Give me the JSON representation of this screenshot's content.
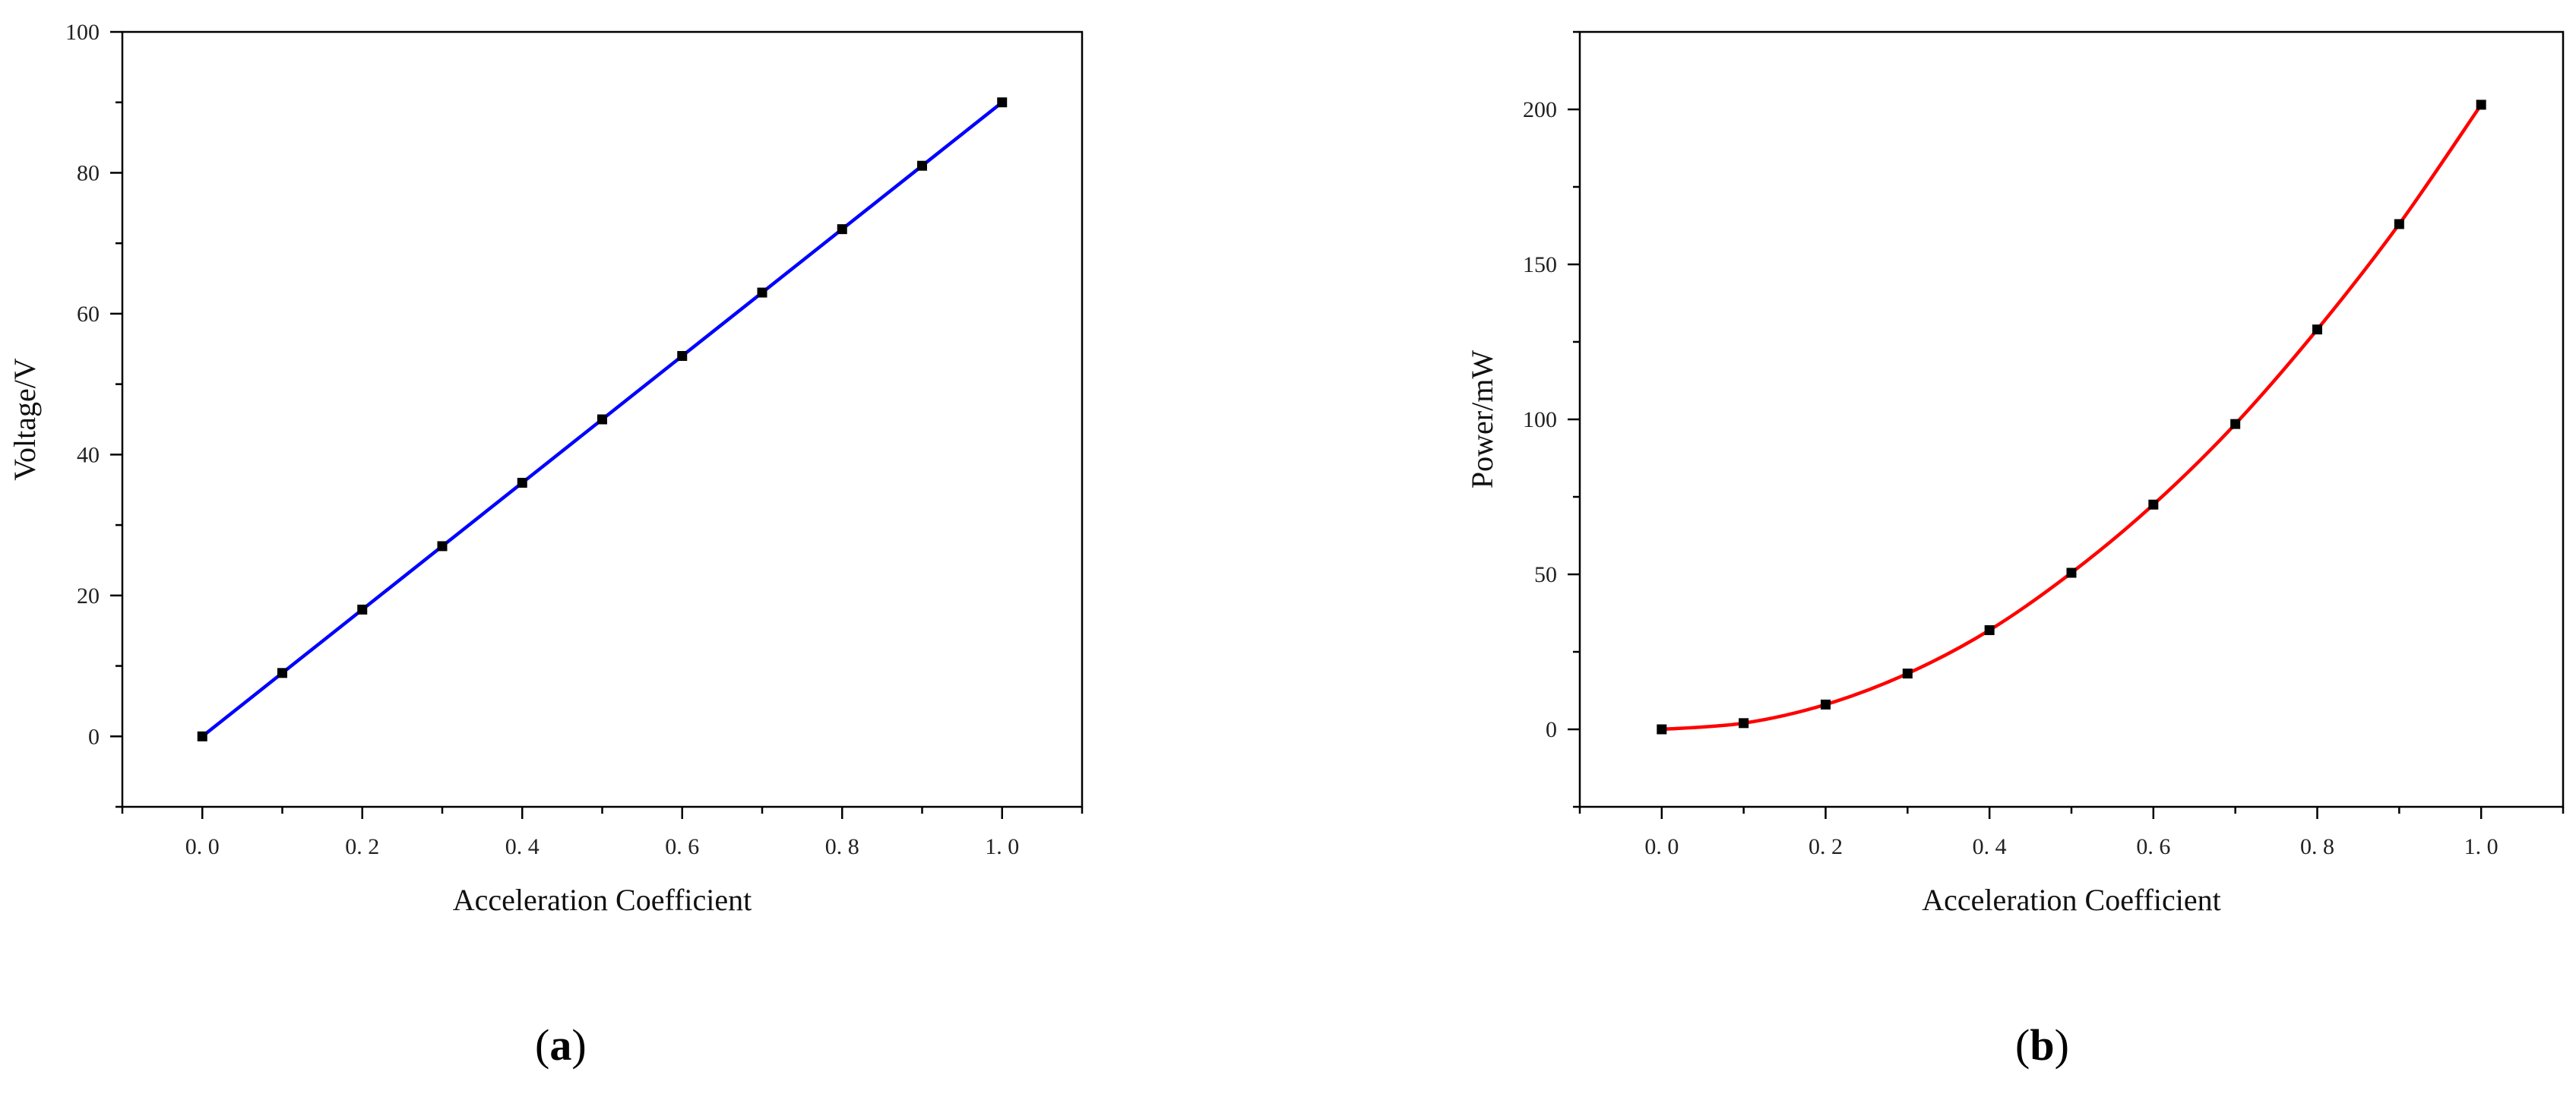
{
  "chart_data": [
    {
      "type": "line",
      "panel_label": "a",
      "xlabel": "Acceleration Coefficient",
      "ylabel": "Voltage/V",
      "xlim": [
        -0.1,
        1.1
      ],
      "ylim": [
        -10,
        100
      ],
      "xticks": [
        0.0,
        0.2,
        0.4,
        0.6,
        0.8,
        1.0
      ],
      "xtick_labels": [
        "0.0",
        "0.2",
        "0.4",
        "0.6",
        "0.8",
        "1.0"
      ],
      "yticks": [
        0,
        20,
        40,
        60,
        80,
        100
      ],
      "ytick_labels": [
        "0",
        "20",
        "40",
        "60",
        "80",
        "100"
      ],
      "grid": false,
      "line_color": "#0000ff",
      "marker_color": "#000000",
      "series": [
        {
          "x": [
            0.0,
            0.1,
            0.2,
            0.3,
            0.4,
            0.5,
            0.6,
            0.7,
            0.8,
            0.9,
            1.0
          ],
          "values": [
            0,
            9,
            18,
            27,
            36,
            45,
            54,
            63,
            72,
            81,
            90
          ]
        }
      ]
    },
    {
      "type": "line",
      "panel_label": "b",
      "xlabel": "Acceleration Coefficient",
      "ylabel": "Power/mW",
      "xlim": [
        -0.1,
        1.1
      ],
      "ylim": [
        -25,
        225
      ],
      "xticks": [
        0.0,
        0.2,
        0.4,
        0.6,
        0.8,
        1.0
      ],
      "xtick_labels": [
        "0.0",
        "0.2",
        "0.4",
        "0.6",
        "0.8",
        "1.0"
      ],
      "yticks": [
        0,
        50,
        100,
        150,
        200
      ],
      "ytick_labels": [
        "0",
        "50",
        "100",
        "150",
        "200"
      ],
      "grid": false,
      "line_color": "#ff0000",
      "marker_color": "#000000",
      "series": [
        {
          "x": [
            0.0,
            0.1,
            0.2,
            0.3,
            0.4,
            0.5,
            0.6,
            0.7,
            0.8,
            0.9,
            1.0
          ],
          "values": [
            0,
            2,
            8,
            18,
            32,
            50.5,
            72.5,
            98.5,
            129,
            163,
            201.5
          ]
        }
      ]
    }
  ]
}
